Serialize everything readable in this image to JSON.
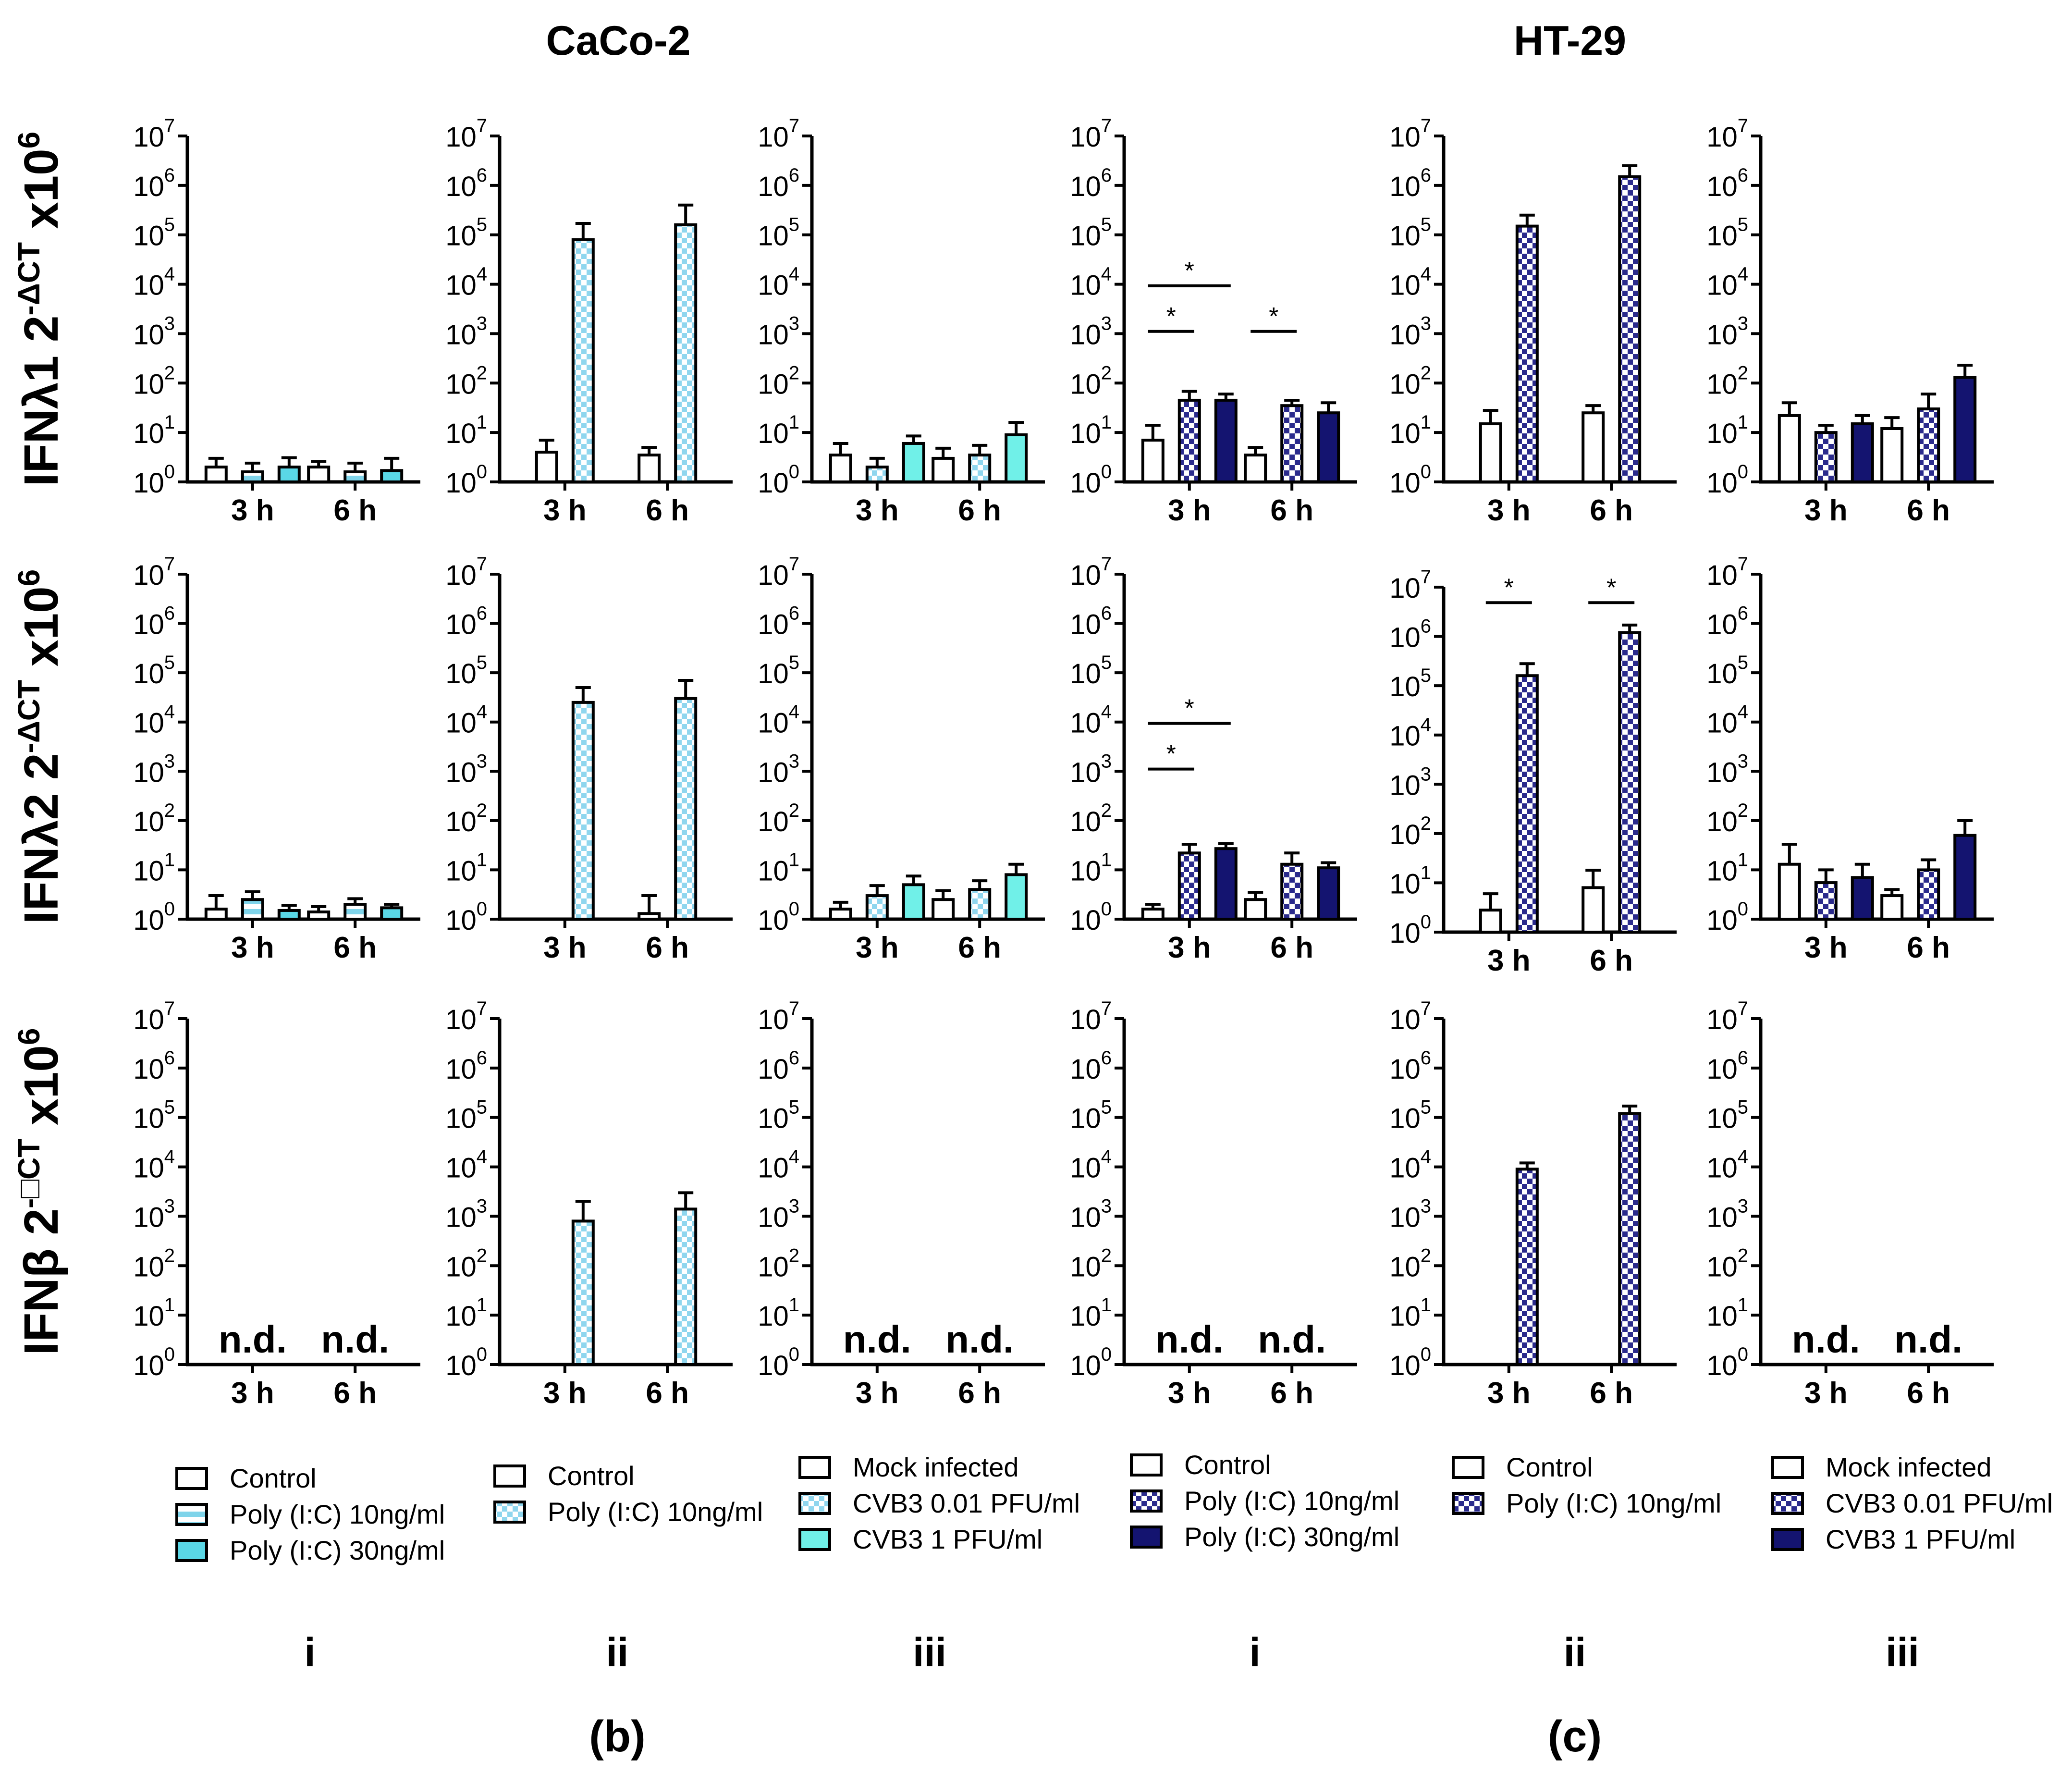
{
  "titles": {
    "caco2": "CaCo-2",
    "ht29": "HT-29"
  },
  "column_labels": [
    "i",
    "ii",
    "iii",
    "i",
    "ii",
    "iii"
  ],
  "panel_labels": {
    "b": "(b)",
    "c": "(c)"
  },
  "colors": {
    "white": "#ffffff",
    "light_cyan": "#9be0ef",
    "cyan": "#5ad7e6",
    "aqua": "#70f0e8",
    "navy": "#141470",
    "check_blue": "#3a3aa0"
  },
  "chart_data": {
    "type": "bar",
    "y_scale": "log10",
    "ylim": [
      1,
      10000000
    ],
    "ytick_exponents": [
      0,
      1,
      2,
      3,
      4,
      5,
      6,
      7
    ],
    "ytick_base": "10",
    "categories": [
      "3 h",
      "6 h"
    ],
    "not_detected_label": "n.d.",
    "row_ylabels": [
      {
        "prefix": "IFNλ1 2",
        "sup": "-ΔCT",
        "suffix": " x10",
        "sup2": "6"
      },
      {
        "prefix": "IFNλ2 2",
        "sup": "-ΔCT",
        "suffix": " x10",
        "sup2": "6"
      },
      {
        "prefix": "IFNβ 2",
        "sup": "-□CT",
        "suffix": " x10",
        "sup2": "6"
      }
    ],
    "legends": [
      [
        "Control",
        "Poly (I:C) 10ng/ml",
        "Poly (I:C) 30ng/ml"
      ],
      [
        "Control",
        "Poly (I:C) 10ng/ml"
      ],
      [
        "Mock infected",
        "CVB3 0.01 PFU/ml",
        "CVB3 1 PFU/ml"
      ],
      [
        "Control",
        "Poly (I:C) 10ng/ml",
        "Poly (I:C) 30ng/ml"
      ],
      [
        "Control",
        "Poly (I:C) 10ng/ml"
      ],
      [
        "Mock infected",
        "CVB3 0.01 PFU/ml",
        "CVB3 1 PFU/ml"
      ]
    ],
    "panels": [
      {
        "row": 0,
        "col": 0,
        "nd": false,
        "series": [
          {
            "style": "open",
            "values": [
              2,
              2
            ],
            "errors": [
              3,
              2.6
            ]
          },
          {
            "style": "hstripe",
            "values": [
              1.6,
              1.6
            ],
            "errors": [
              2.4,
              2.4
            ]
          },
          {
            "style": "cyan",
            "values": [
              2,
              1.7
            ],
            "errors": [
              3.1,
              3
            ]
          }
        ]
      },
      {
        "row": 0,
        "col": 1,
        "nd": false,
        "series": [
          {
            "style": "open",
            "values": [
              4,
              3.5
            ],
            "errors": [
              7,
              5
            ]
          },
          {
            "style": "check_light",
            "values": [
              80000,
              160000
            ],
            "errors": [
              170000,
              400000
            ]
          }
        ]
      },
      {
        "row": 0,
        "col": 2,
        "nd": false,
        "series": [
          {
            "style": "open",
            "values": [
              3.5,
              3
            ],
            "errors": [
              6,
              4.8
            ]
          },
          {
            "style": "check_light",
            "values": [
              2,
              3.5
            ],
            "errors": [
              3,
              5.5
            ]
          },
          {
            "style": "aqua",
            "values": [
              6,
              9
            ],
            "errors": [
              8.5,
              16
            ]
          }
        ]
      },
      {
        "row": 0,
        "col": 3,
        "nd": false,
        "series": [
          {
            "style": "open",
            "values": [
              7,
              3.5
            ],
            "errors": [
              14,
              5
            ]
          },
          {
            "style": "check_navy",
            "values": [
              45,
              35
            ],
            "errors": [
              68,
              45
            ]
          },
          {
            "style": "navy",
            "values": [
              45,
              25
            ],
            "errors": [
              60,
              40
            ]
          }
        ],
        "sig": [
          {
            "from": 0,
            "to": 1,
            "level": 0,
            "text": "*"
          },
          {
            "from": 0,
            "to": 2,
            "level": 1,
            "text": "*"
          },
          {
            "from": 3,
            "to": 4,
            "level": 0,
            "text": "*"
          }
        ]
      },
      {
        "row": 0,
        "col": 4,
        "nd": false,
        "series": [
          {
            "style": "open",
            "values": [
              15,
              25
            ],
            "errors": [
              28,
              35
            ]
          },
          {
            "style": "check_navy",
            "values": [
              150000,
              1500000
            ],
            "errors": [
              250000,
              2500000
            ]
          }
        ]
      },
      {
        "row": 0,
        "col": 5,
        "nd": false,
        "series": [
          {
            "style": "open",
            "values": [
              22,
              12
            ],
            "errors": [
              40,
              20
            ]
          },
          {
            "style": "check_navy",
            "values": [
              10,
              30
            ],
            "errors": [
              14,
              60
            ]
          },
          {
            "style": "navy",
            "values": [
              15,
              130
            ],
            "errors": [
              22,
              230
            ]
          }
        ]
      },
      {
        "row": 1,
        "col": 0,
        "nd": false,
        "series": [
          {
            "style": "open",
            "values": [
              1.6,
              1.4
            ],
            "errors": [
              3,
              1.8
            ]
          },
          {
            "style": "hstripe",
            "values": [
              2.5,
              2
            ],
            "errors": [
              3.6,
              2.6
            ]
          },
          {
            "style": "cyan",
            "values": [
              1.5,
              1.7
            ],
            "errors": [
              1.9,
              2
            ]
          }
        ]
      },
      {
        "row": 1,
        "col": 1,
        "nd": false,
        "series": [
          {
            "style": "open",
            "values": [
              1,
              1.3
            ],
            "errors": [
              1,
              3
            ]
          },
          {
            "style": "check_light",
            "values": [
              25000,
              30000
            ],
            "errors": [
              50000,
              70000
            ]
          }
        ]
      },
      {
        "row": 1,
        "col": 2,
        "nd": false,
        "series": [
          {
            "style": "open",
            "values": [
              1.6,
              2.5
            ],
            "errors": [
              2.2,
              3.8
            ]
          },
          {
            "style": "check_light",
            "values": [
              3,
              4
            ],
            "errors": [
              4.8,
              6
            ]
          },
          {
            "style": "aqua",
            "values": [
              5,
              8
            ],
            "errors": [
              7.5,
              13
            ]
          }
        ]
      },
      {
        "row": 1,
        "col": 3,
        "nd": false,
        "series": [
          {
            "style": "open",
            "values": [
              1.6,
              2.5
            ],
            "errors": [
              2,
              3.5
            ]
          },
          {
            "style": "check_navy",
            "values": [
              22,
              13
            ],
            "errors": [
              33,
              22
            ]
          },
          {
            "style": "navy",
            "values": [
              27,
              11
            ],
            "errors": [
              34,
              14
            ]
          }
        ],
        "sig": [
          {
            "from": 0,
            "to": 1,
            "level": 0,
            "text": "*"
          },
          {
            "from": 0,
            "to": 2,
            "level": 1,
            "text": "*"
          }
        ]
      },
      {
        "row": 1,
        "col": 4,
        "nd": false,
        "series": [
          {
            "style": "open",
            "values": [
              2.8,
              8
            ],
            "errors": [
              6,
              18
            ]
          },
          {
            "style": "check_navy",
            "values": [
              160000,
              1200000
            ],
            "errors": [
              280000,
              1700000
            ]
          }
        ],
        "sig": [
          {
            "from": 0,
            "to": 1,
            "level": 0,
            "text": "*"
          },
          {
            "from": 2,
            "to": 3,
            "level": 0,
            "text": "*"
          }
        ]
      },
      {
        "row": 1,
        "col": 5,
        "nd": false,
        "series": [
          {
            "style": "open",
            "values": [
              13,
              3
            ],
            "errors": [
              33,
              4
            ]
          },
          {
            "style": "check_navy",
            "values": [
              5.5,
              10
            ],
            "errors": [
              10,
              16
            ]
          },
          {
            "style": "navy",
            "values": [
              7,
              50
            ],
            "errors": [
              13,
              100
            ]
          }
        ]
      },
      {
        "row": 2,
        "col": 0,
        "nd": true,
        "series": []
      },
      {
        "row": 2,
        "col": 1,
        "nd": false,
        "series": [
          {
            "style": "open",
            "values": [
              1,
              1
            ],
            "errors": [
              1,
              1
            ]
          },
          {
            "style": "check_light",
            "values": [
              800,
              1400
            ],
            "errors": [
              2000,
              3000
            ]
          }
        ]
      },
      {
        "row": 2,
        "col": 2,
        "nd": true,
        "series": []
      },
      {
        "row": 2,
        "col": 3,
        "nd": true,
        "series": []
      },
      {
        "row": 2,
        "col": 4,
        "nd": false,
        "series": [
          {
            "style": "open",
            "values": [
              1,
              1
            ],
            "errors": [
              1,
              1
            ]
          },
          {
            "style": "check_navy",
            "values": [
              9000,
              120000
            ],
            "errors": [
              12000,
              170000
            ]
          }
        ]
      },
      {
        "row": 2,
        "col": 5,
        "nd": true,
        "series": []
      }
    ]
  }
}
